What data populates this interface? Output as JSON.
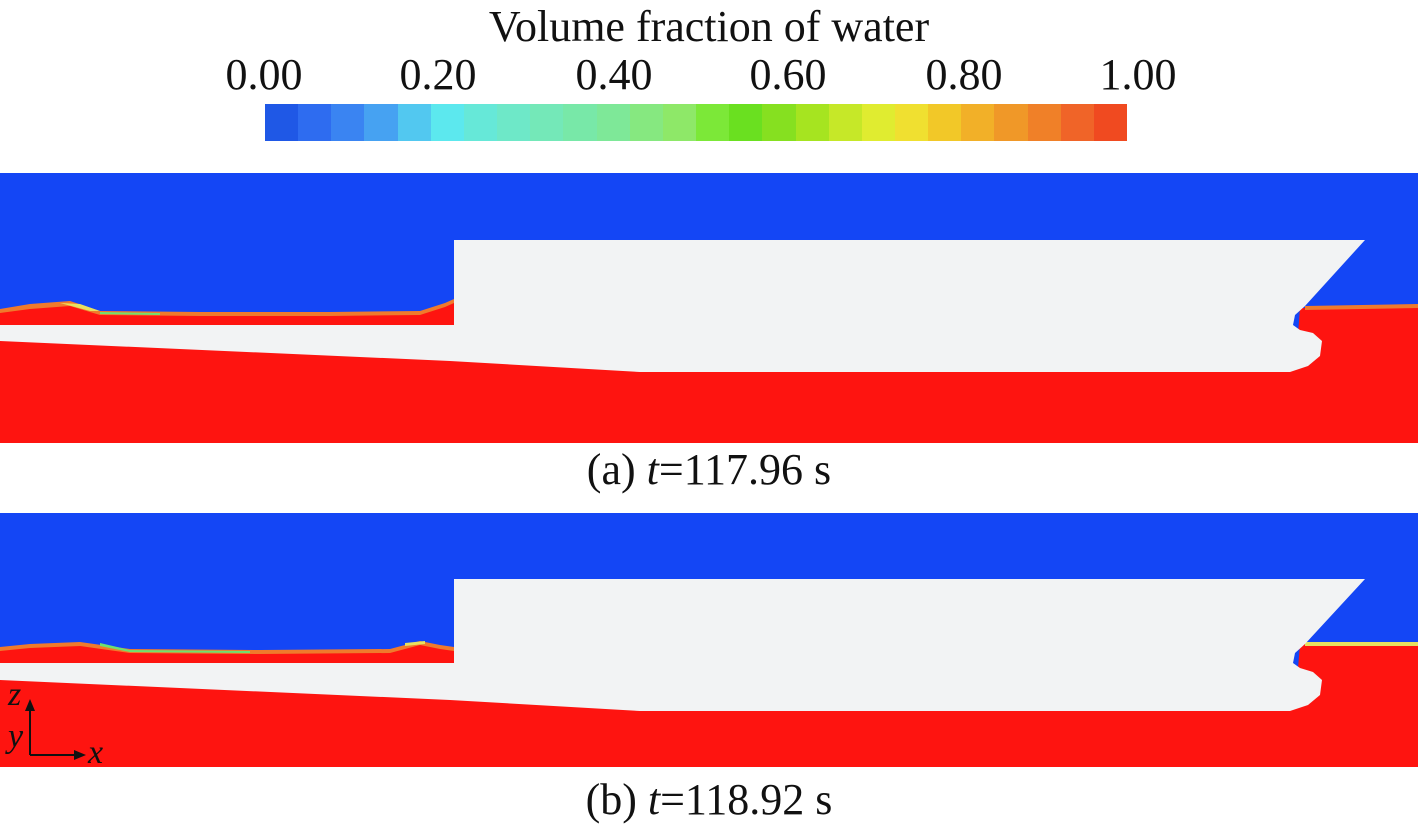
{
  "legend": {
    "title": "Volume fraction of water",
    "ticks": [
      "0.00",
      "0.20",
      "0.40",
      "0.60",
      "0.80",
      "1.00"
    ],
    "colorbar_colors": [
      "#1f58e6",
      "#2e6cf0",
      "#3a84f2",
      "#46a2f2",
      "#52c8f0",
      "#5ce8ee",
      "#66e8d8",
      "#6ee8c8",
      "#74e8b8",
      "#78e8a8",
      "#7ee898",
      "#86e880",
      "#8ee868",
      "#7ce838",
      "#6ae020",
      "#86e020",
      "#a6e420",
      "#c6e828",
      "#e0ec30",
      "#f0e030",
      "#f2c828",
      "#f2b028",
      "#f09828",
      "#f08028",
      "#f06428",
      "#f04a20"
    ]
  },
  "colors": {
    "air": "#1446f5",
    "water": "#fe1410",
    "hull": "#f2f3f4",
    "interface_orange": "#f07a2c",
    "interface_green": "#6fe070",
    "interface_yellow": "#e8e060"
  },
  "panels": [
    {
      "caption_label": "(a) ",
      "caption_var": "t",
      "caption_value": "=117.96 s"
    },
    {
      "caption_label": "(b) ",
      "caption_var": "t",
      "caption_value": "=118.92 s"
    }
  ],
  "axes_triad": {
    "z_label": "z",
    "y_label": "y",
    "x_label": "x"
  }
}
